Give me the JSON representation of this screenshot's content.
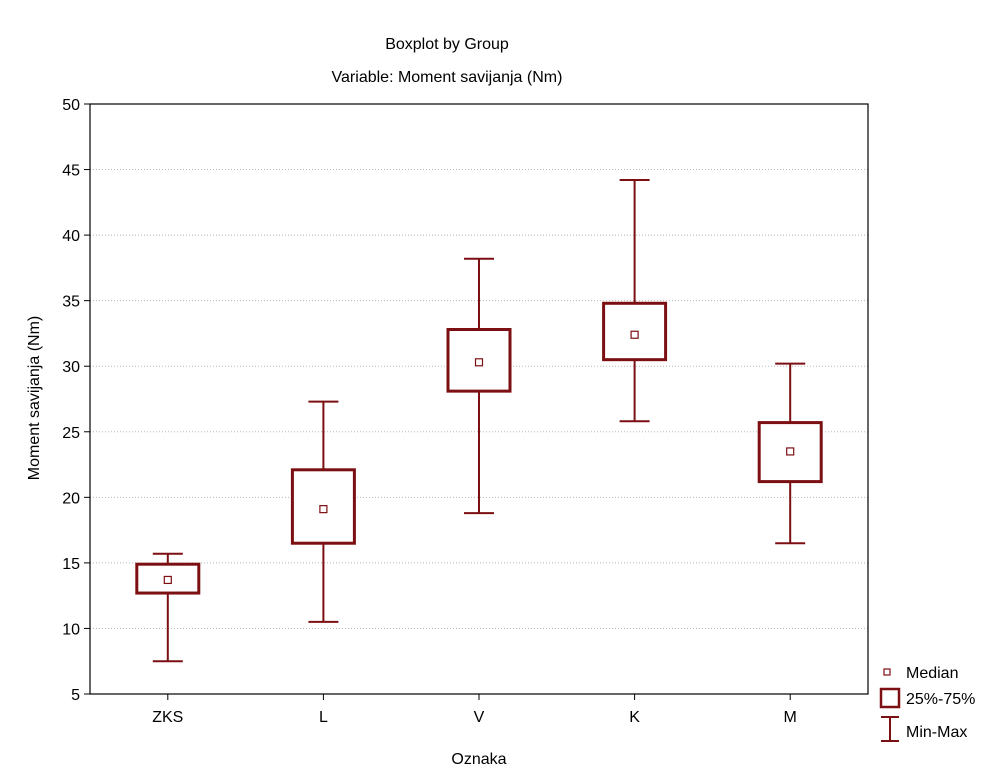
{
  "chart_data": {
    "type": "boxplot",
    "title": "Boxplot by Group",
    "subtitle": "Variable: Moment savijanja (Nm)",
    "xlabel": "Oznaka",
    "ylabel": "Moment savijanja (Nm)",
    "ylim": [
      5,
      50
    ],
    "yticks": [
      5,
      10,
      15,
      20,
      25,
      30,
      35,
      40,
      45,
      50
    ],
    "grid": true,
    "color": "#7b0f12",
    "legend_position": "bottom-right outside",
    "legend": {
      "median": "Median",
      "box": "25%-75%",
      "whisker": "Min-Max"
    },
    "categories": [
      "ZKS",
      "L",
      "V",
      "K",
      "M"
    ],
    "groups": [
      {
        "name": "ZKS",
        "min": 7.5,
        "q1": 12.7,
        "median": 13.7,
        "q3": 14.9,
        "max": 15.7
      },
      {
        "name": "L",
        "min": 10.5,
        "q1": 16.5,
        "median": 19.1,
        "q3": 22.1,
        "max": 27.3
      },
      {
        "name": "V",
        "min": 18.8,
        "q1": 28.1,
        "median": 30.3,
        "q3": 32.8,
        "max": 38.2
      },
      {
        "name": "K",
        "min": 25.8,
        "q1": 30.5,
        "median": 32.4,
        "q3": 34.8,
        "max": 44.2
      },
      {
        "name": "M",
        "min": 16.5,
        "q1": 21.2,
        "median": 23.5,
        "q3": 25.7,
        "max": 30.2
      }
    ]
  }
}
